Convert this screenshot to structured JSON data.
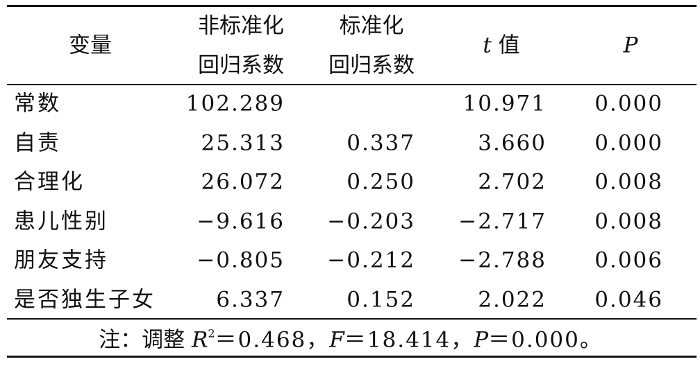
{
  "header": {
    "variable": "变量",
    "unstandardized": [
      "非标准化",
      "回归系数"
    ],
    "standardized": [
      "标准化",
      "回归系数"
    ],
    "t": [
      "t",
      "值"
    ],
    "p": "P"
  },
  "table": {
    "rows": [
      [
        "常数",
        "102.289",
        null,
        "10.971",
        "0.000"
      ],
      [
        "自责",
        "25.313",
        "0.337",
        "3.660",
        "0.000"
      ],
      [
        "合理化",
        "26.072",
        "0.250",
        "2.702",
        "0.008"
      ],
      [
        "患儿性别",
        "−9.616",
        "−0.203",
        "−2.717",
        "0.008"
      ],
      [
        "朋友支持",
        "−0.805",
        "−0.212",
        "−2.788",
        "0.006"
      ],
      [
        "是否独生子女",
        "6.337",
        "0.152",
        "2.022",
        "0.046"
      ]
    ]
  },
  "note": [
    "注：调整 ",
    "R",
    "2",
    "＝0.468，",
    "F",
    "＝18.414，",
    "P",
    "＝0.000。"
  ]
}
